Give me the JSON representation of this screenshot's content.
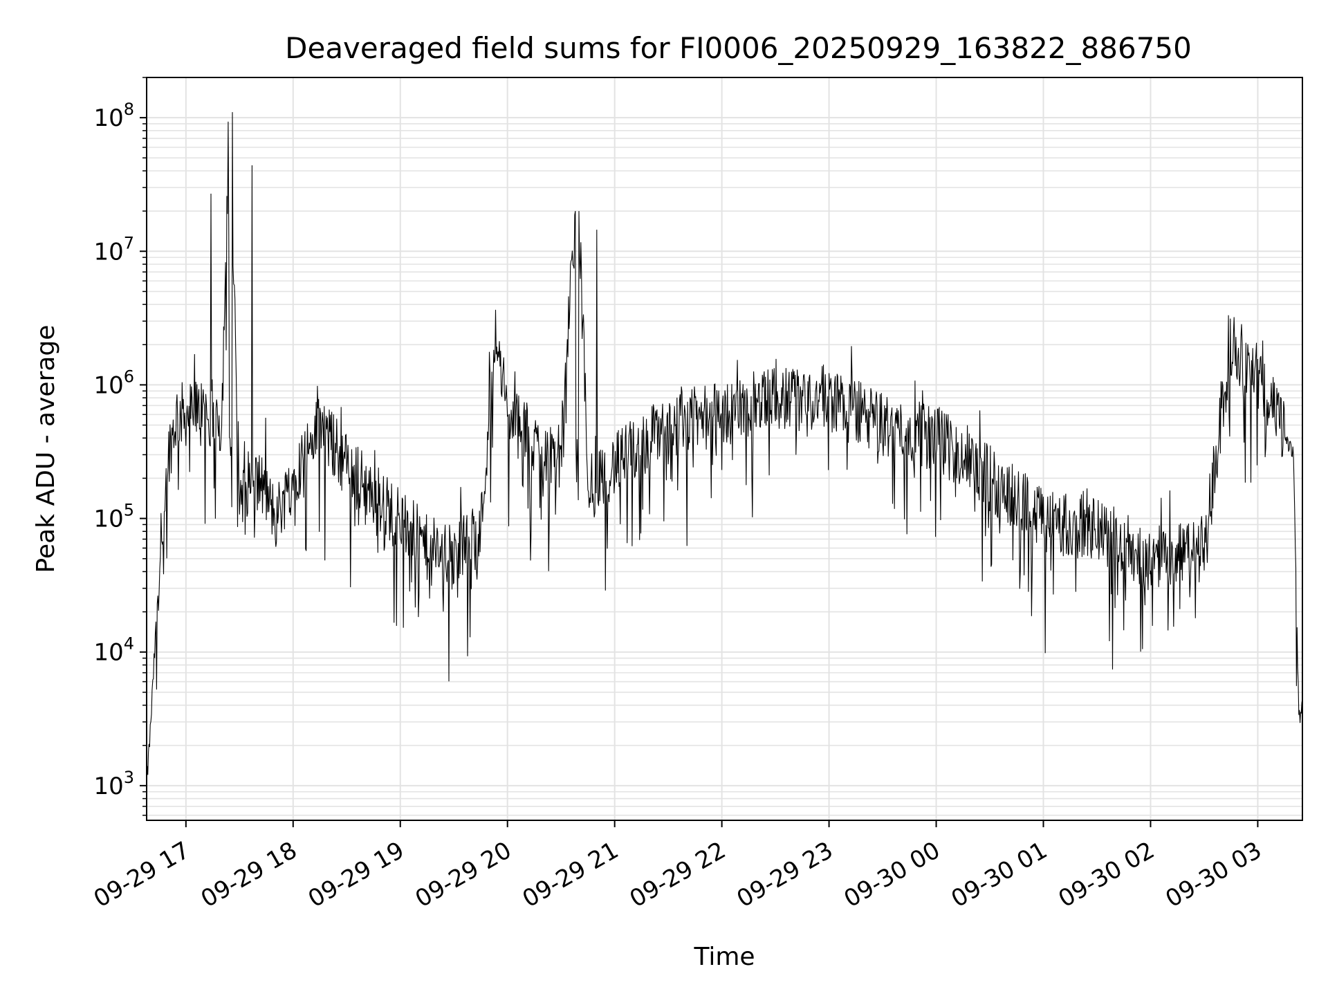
{
  "chart_data": {
    "type": "line",
    "title": "Deaveraged field sums for FI0006_20250929_163822_886750",
    "xlabel": "Time",
    "ylabel": "Peak ADU - average",
    "yscale": "log",
    "ylim": [
      550,
      200000000
    ],
    "xlim": [
      "2025-09-29 16:38",
      "2025-09-30 03:25"
    ],
    "x_ticks": [
      "09-29 17",
      "09-29 18",
      "09-29 19",
      "09-29 20",
      "09-29 21",
      "09-29 22",
      "09-29 23",
      "09-30 00",
      "09-30 01",
      "09-30 02",
      "09-30 03"
    ],
    "y_ticks": [
      1000,
      10000,
      100000,
      1000000,
      10000000,
      100000000
    ],
    "grid": true,
    "line_color": "#000000",
    "series": [
      {
        "x": [
          "2025-09-29 16:38",
          "2025-09-29 16:40",
          "2025-09-29 16:45",
          "2025-09-29 16:50",
          "2025-09-29 16:55",
          "2025-09-29 17:00",
          "2025-09-29 17:10",
          "2025-09-29 17:14",
          "2025-09-29 17:20",
          "2025-09-29 17:24",
          "2025-09-29 17:26",
          "2025-09-29 17:30",
          "2025-09-29 17:37",
          "2025-09-29 17:40",
          "2025-09-29 17:45",
          "2025-09-29 17:50",
          "2025-09-29 18:00",
          "2025-09-29 18:15",
          "2025-09-29 18:30",
          "2025-09-29 18:45",
          "2025-09-29 19:00",
          "2025-09-29 19:15",
          "2025-09-29 19:30",
          "2025-09-29 19:45",
          "2025-09-29 19:53",
          "2025-09-29 20:00",
          "2025-09-29 20:15",
          "2025-09-29 20:30",
          "2025-09-29 20:38",
          "2025-09-29 20:40",
          "2025-09-29 20:45",
          "2025-09-29 20:50",
          "2025-09-29 21:00",
          "2025-09-29 21:30",
          "2025-09-29 22:00",
          "2025-09-29 22:30",
          "2025-09-29 23:00",
          "2025-09-29 23:30",
          "2025-09-30 00:00",
          "2025-09-30 00:30",
          "2025-09-30 01:00",
          "2025-09-30 01:30",
          "2025-09-30 02:00",
          "2025-09-30 02:30",
          "2025-09-30 02:45",
          "2025-09-30 03:00",
          "2025-09-30 03:10",
          "2025-09-30 03:20",
          "2025-09-30 03:23",
          "2025-09-30 03:25"
        ],
        "y": [
          1000,
          2500,
          40000,
          300000,
          600000,
          600000,
          650000,
          27000000,
          500000,
          13000000,
          110000000,
          150000,
          44000000,
          200000,
          150000,
          100000,
          200000,
          500000,
          250000,
          150000,
          100000,
          60000,
          50000,
          80000,
          2500000,
          600000,
          350000,
          300000,
          20000000,
          20000000,
          200000,
          14500000,
          250000,
          500000,
          600000,
          800000,
          800000,
          500000,
          400000,
          200000,
          100000,
          80000,
          50000,
          60000,
          2000000,
          1200000,
          600000,
          300000,
          3000,
          4500
        ]
      }
    ]
  }
}
